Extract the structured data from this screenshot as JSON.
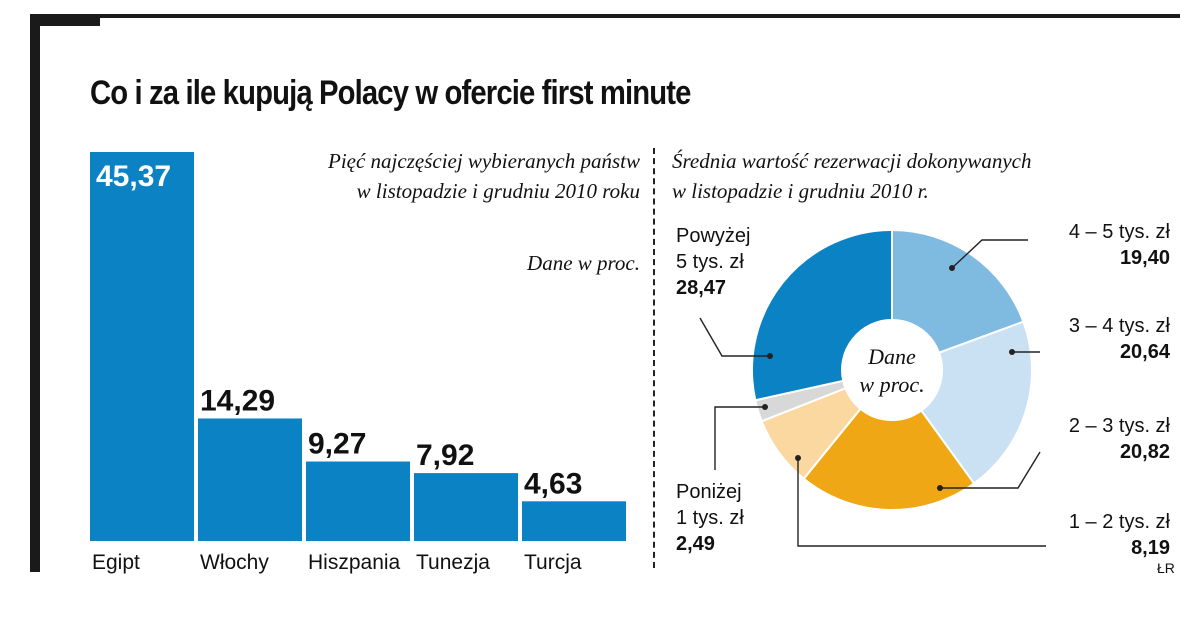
{
  "title": "Co i za ile kupują Polacy w ofercie first minute",
  "source": "ŁR",
  "chart_data": [
    {
      "type": "bar",
      "subtitle_lines": [
        "Pięć najczęściej wybieranych państw",
        "w listopadzie i grudniu 2010 roku"
      ],
      "unit_note": "Dane w proc.",
      "categories": [
        "Egipt",
        "Włochy",
        "Hiszpania",
        "Tunezja",
        "Turcja"
      ],
      "values": [
        45.37,
        14.29,
        9.27,
        7.92,
        4.63
      ],
      "value_labels": [
        "45,37",
        "14,29",
        "9,27",
        "7,92",
        "4,63"
      ],
      "ylim": [
        0,
        45.37
      ],
      "color": "#0a82c4"
    },
    {
      "type": "pie",
      "subtitle_lines": [
        "Średnia wartość rezerwacji dokonywanych",
        "w listopadzie i grudniu 2010 r."
      ],
      "center_lines": [
        "Dane",
        "w proc."
      ],
      "slices": [
        {
          "label_lines": [
            "4 – 5 tys. zł"
          ],
          "value": 19.4,
          "value_label": "19,40",
          "color": "#7fbbe0"
        },
        {
          "label_lines": [
            "3 – 4 tys. zł"
          ],
          "value": 20.64,
          "value_label": "20,64",
          "color": "#c9e1f3"
        },
        {
          "label_lines": [
            "2 – 3 tys. zł"
          ],
          "value": 20.82,
          "value_label": "20,82",
          "color": "#f0a716"
        },
        {
          "label_lines": [
            "1 – 2 tys. zł"
          ],
          "value": 8.19,
          "value_label": "8,19",
          "color": "#fbd8a0"
        },
        {
          "label_lines": [
            "Poniżej",
            "1 tys. zł"
          ],
          "value": 2.49,
          "value_label": "2,49",
          "color": "#d8d8d8"
        },
        {
          "label_lines": [
            "Powyżej",
            "5 tys. zł"
          ],
          "value": 28.47,
          "value_label": "28,47",
          "color": "#0a82c4"
        }
      ]
    }
  ]
}
